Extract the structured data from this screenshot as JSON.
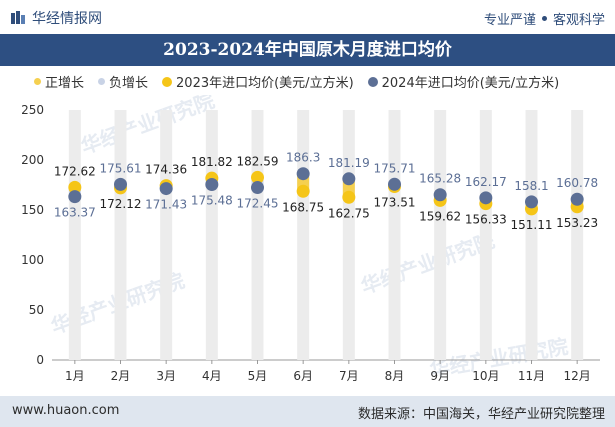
{
  "header": {
    "brand": "华经情报网",
    "tagline_left": "专业严谨",
    "tagline_right": "客观科学"
  },
  "chart_data": {
    "type": "scatter",
    "title": "2023-2024年中国原木月度进口均价",
    "legend": [
      "正增长",
      "负增长",
      "2023年进口均价(美元/立方米)",
      "2024年进口均价(美元/立方米)"
    ],
    "categories": [
      "1月",
      "2月",
      "3月",
      "4月",
      "5月",
      "6月",
      "7月",
      "8月",
      "9月",
      "10月",
      "11月",
      "12月"
    ],
    "series": [
      {
        "name": "2023年进口均价(美元/立方米)",
        "values": [
          172.62,
          172.12,
          174.36,
          181.82,
          182.59,
          168.75,
          162.75,
          173.51,
          159.62,
          156.33,
          151.11,
          153.23
        ],
        "color": "#f5c518"
      },
      {
        "name": "2024年进口均价(美元/立方米)",
        "values": [
          163.37,
          175.61,
          171.43,
          175.48,
          172.45,
          186.3,
          181.19,
          175.71,
          165.28,
          162.17,
          158.1,
          160.78
        ],
        "color": "#5c6f95"
      }
    ],
    "ylim": [
      0,
      250
    ],
    "yticks": [
      0,
      50,
      100,
      150,
      200,
      250
    ],
    "colors": {
      "positive": "#f5d050",
      "negative": "#c9d3e6"
    }
  },
  "watermark": "华经产业研究院",
  "footer": {
    "left": "www.huaon.com",
    "right": "数据来源：中国海关，华经产业研究院整理"
  }
}
